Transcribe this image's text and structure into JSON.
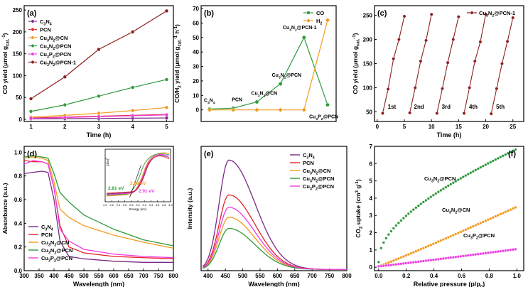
{
  "chart_data": [
    {
      "panel": "(a)",
      "type": "line",
      "xlabel": "Time (h)",
      "ylabel": "CO yield (μmol g",
      "ylabel_sub": "cat.",
      "ylabel_sup": "-1",
      "ylabel_close": ")",
      "xlim": [
        0.8,
        5.2
      ],
      "ylim": [
        -5,
        260
      ],
      "xticks": [
        1,
        2,
        3,
        4,
        5
      ],
      "yticks": [
        0,
        50,
        100,
        150,
        200,
        250
      ],
      "legend": "top-left",
      "series": [
        {
          "name": "C3N4",
          "label_parts": [
            "C",
            "3",
            "N",
            "4"
          ],
          "color": "#7b2a86",
          "x": [
            1,
            2,
            3,
            4,
            5
          ],
          "y": [
            1,
            1.5,
            2,
            2.5,
            3
          ]
        },
        {
          "name": "PCN",
          "label_parts": [
            "PCN"
          ],
          "color": "#e8232a",
          "x": [
            1,
            2,
            3,
            4,
            5
          ],
          "y": [
            3,
            5,
            7,
            9,
            11
          ]
        },
        {
          "name": "Cu3N2@CN",
          "label_parts": [
            "Cu",
            "3",
            "N",
            "2",
            "@CN"
          ],
          "color": "#f29a1e",
          "x": [
            1,
            2,
            3,
            4,
            5
          ],
          "y": [
            5,
            9,
            14,
            20,
            27
          ]
        },
        {
          "name": "Cu3N2@PCN",
          "label_parts": [
            "Cu",
            "3",
            "N",
            "2",
            "@PCN"
          ],
          "color": "#2e9a3a",
          "x": [
            1,
            2,
            3,
            4,
            5
          ],
          "y": [
            18,
            33,
            53,
            73,
            91
          ]
        },
        {
          "name": "Cu3P2@PCN",
          "label_parts": [
            "Cu",
            "3",
            "P",
            "2",
            "@PCN"
          ],
          "color": "#ee3de0",
          "x": [
            1,
            2,
            3,
            4,
            5
          ],
          "y": [
            2,
            4,
            6,
            8,
            10
          ]
        },
        {
          "name": "Cu3N2@PCN-1",
          "label_parts": [
            "Cu",
            "3",
            "N",
            "2",
            "@PCN-1"
          ],
          "color": "#8c1d1d",
          "x": [
            1,
            2,
            3,
            4,
            5
          ],
          "y": [
            47,
            97,
            160,
            200,
            248
          ]
        }
      ]
    },
    {
      "panel": "(b)",
      "type": "line",
      "xlabel": "",
      "ylabel": "CO/H",
      "ylabel_sub2": "2",
      "ylabel_rest": " yield (μmol g",
      "ylabel_sub": "cat.",
      "ylabel_sup": "-1",
      "ylabel_sup2": "h",
      "ylabel_close": ")",
      "ylim": [
        -8,
        72
      ],
      "yticks": [
        0,
        10,
        20,
        30,
        40,
        50,
        60,
        70
      ],
      "categories": [
        "C3N4",
        "PCN",
        "Cu3N2@CN",
        "Cu3N2@PCN",
        "Cu3N2@PCN-1",
        "Cu3P2@PCN"
      ],
      "category_labels": [
        [
          "C",
          "3",
          "N",
          "4"
        ],
        [
          "PCN"
        ],
        [
          "Cu",
          "3",
          "N",
          "2",
          "@CN"
        ],
        [
          "Cu",
          "3",
          "N",
          "2",
          "@PCN"
        ],
        [
          "Cu",
          "3",
          "N",
          "2",
          "@PCN-1"
        ],
        [
          "Cu",
          "3",
          "P",
          "2",
          "@PCN"
        ]
      ],
      "legend": "top-right",
      "series": [
        {
          "name": "CO",
          "color": "#2e9a3a",
          "values": [
            0.6,
            1.2,
            5.5,
            18,
            50,
            3.5
          ]
        },
        {
          "name": "H2",
          "label_parts": [
            "H",
            "2"
          ],
          "color": "#f29a1e",
          "values": [
            0,
            0,
            0,
            0,
            0,
            62
          ]
        }
      ]
    },
    {
      "panel": "(c)",
      "type": "line",
      "xlabel": "Time (h)",
      "ylabel": "CO yield (μmol g",
      "ylabel_sub": "cat.",
      "ylabel_sup": "-1",
      "ylabel_close": ")",
      "xlim": [
        -0.5,
        27
      ],
      "ylim": [
        30,
        270
      ],
      "xticks": [
        0,
        5,
        10,
        15,
        20,
        25
      ],
      "yticks": [
        50,
        100,
        150,
        200,
        250
      ],
      "legend": "top-right",
      "series_name": "Cu3N2@PCN-1",
      "series_label_parts": [
        "Cu",
        "3",
        "N",
        "2",
        "@PCN-1"
      ],
      "color": "#8c1d1d",
      "cycles": [
        {
          "label": "1st",
          "x": [
            1,
            2,
            3,
            4,
            5
          ],
          "y": [
            47,
            97,
            160,
            200,
            248
          ]
        },
        {
          "label": "2nd",
          "x": [
            6,
            7,
            8,
            9,
            10
          ],
          "y": [
            48,
            100,
            155,
            198,
            252
          ]
        },
        {
          "label": "3rd",
          "x": [
            11,
            12,
            13,
            14,
            15
          ],
          "y": [
            47,
            98,
            152,
            200,
            247
          ]
        },
        {
          "label": "4th",
          "x": [
            16,
            17,
            18,
            19,
            20
          ],
          "y": [
            47,
            100,
            155,
            195,
            252
          ]
        },
        {
          "label": "5th",
          "x": [
            21,
            22,
            23,
            24,
            25
          ],
          "y": [
            46,
            98,
            150,
            196,
            245
          ]
        }
      ]
    },
    {
      "panel": "(d)",
      "type": "line",
      "xlabel": "Wavelength (nm)",
      "ylabel": "Absorbance (a.u.)",
      "xlim": [
        300,
        800
      ],
      "ylim": [
        0,
        1.05
      ],
      "xticks": [
        300,
        350,
        400,
        450,
        500,
        550,
        600,
        650,
        700,
        750,
        800
      ],
      "yticks": [
        0.0,
        0.2,
        0.4,
        0.6,
        0.8,
        1.0
      ],
      "legend": "bottom-left",
      "series": [
        {
          "name": "C3N4",
          "label_parts": [
            "C",
            "3",
            "N",
            "4"
          ],
          "color": "#7b2a86",
          "x": [
            300,
            330,
            360,
            380,
            400,
            420,
            450,
            500,
            600,
            700,
            800
          ],
          "y": [
            0.82,
            0.83,
            0.84,
            0.83,
            0.6,
            0.25,
            0.12,
            0.1,
            0.08,
            0.07,
            0.07
          ]
        },
        {
          "name": "PCN",
          "label_parts": [
            "PCN"
          ],
          "color": "#e8232a",
          "x": [
            300,
            330,
            360,
            380,
            400,
            420,
            450,
            500,
            600,
            700,
            800
          ],
          "y": [
            0.93,
            0.92,
            0.92,
            0.9,
            0.7,
            0.38,
            0.2,
            0.15,
            0.12,
            0.11,
            0.1
          ]
        },
        {
          "name": "Cu3N2@CN",
          "label_parts": [
            "Cu",
            "3",
            "N",
            "2",
            "@CN"
          ],
          "color": "#f29a1e",
          "x": [
            300,
            330,
            360,
            380,
            400,
            420,
            450,
            500,
            600,
            700,
            800
          ],
          "y": [
            0.95,
            0.96,
            0.95,
            0.93,
            0.75,
            0.52,
            0.45,
            0.38,
            0.3,
            0.24,
            0.19
          ]
        },
        {
          "name": "Cu3N2@PCN",
          "label_parts": [
            "Cu",
            "3",
            "N",
            "2",
            "@PCN"
          ],
          "color": "#2e9a3a",
          "x": [
            300,
            330,
            360,
            380,
            400,
            420,
            450,
            500,
            600,
            700,
            800
          ],
          "y": [
            0.96,
            0.97,
            0.96,
            0.95,
            0.82,
            0.66,
            0.58,
            0.47,
            0.35,
            0.26,
            0.21
          ]
        },
        {
          "name": "Cu3P2@PCN",
          "label_parts": [
            "Cu",
            "3",
            "P",
            "2",
            "@PCN"
          ],
          "color": "#ee3de0",
          "x": [
            300,
            330,
            360,
            380,
            400,
            420,
            450,
            500,
            600,
            700,
            800
          ],
          "y": [
            0.9,
            0.93,
            0.92,
            0.9,
            0.7,
            0.35,
            0.25,
            0.18,
            0.14,
            0.12,
            0.11
          ]
        }
      ],
      "inset": {
        "ylabel": "(αhν)",
        "ylabel_sup": "2",
        "xlabel": "Energy (eV)",
        "xlim": [
          2.0,
          4.0
        ],
        "xticks": [
          2.0,
          2.2,
          2.4,
          2.6,
          2.8,
          3.0,
          3.2,
          3.4,
          3.6,
          3.8,
          4.0
        ],
        "annotations": [
          {
            "text": "2.89 eV",
            "color": "#f29a1e"
          },
          {
            "text": "2.81 eV",
            "color": "#2e9a3a"
          },
          {
            "text": "2.91 eV",
            "color": "#ee3de0"
          }
        ]
      }
    },
    {
      "panel": "(e)",
      "type": "line",
      "xlabel": "Wavelength (nm)",
      "ylabel": "Intensity (a.u.)",
      "xlim": [
        380,
        800
      ],
      "ylim": [
        0,
        1.0
      ],
      "xticks": [
        400,
        450,
        500,
        550,
        600,
        650,
        700,
        750,
        800
      ],
      "legend": "top-right",
      "series": [
        {
          "name": "C3N4",
          "label_parts": [
            "C",
            "3",
            "N",
            "4"
          ],
          "color": "#7b2a86",
          "peak_x": 460,
          "peak_y": 0.88
        },
        {
          "name": "PCN",
          "label_parts": [
            "PCN"
          ],
          "color": "#e8232a",
          "peak_x": 460,
          "peak_y": 0.6
        },
        {
          "name": "Cu3N2@CN",
          "label_parts": [
            "Cu",
            "3",
            "N",
            "2",
            "@CN"
          ],
          "color": "#f29a1e",
          "peak_x": 460,
          "peak_y": 0.42
        },
        {
          "name": "Cu3N2@PCN",
          "label_parts": [
            "Cu",
            "3",
            "N",
            "2",
            "@PCN"
          ],
          "color": "#2e9a3a",
          "peak_x": 460,
          "peak_y": 0.33
        },
        {
          "name": "Cu3P2@PCN",
          "label_parts": [
            "Cu",
            "3",
            "P",
            "2",
            "@PCN"
          ],
          "color": "#ee3de0",
          "peak_x": 460,
          "peak_y": 0.5
        }
      ]
    },
    {
      "panel": "(f)",
      "type": "scatter",
      "xlabel": "Relative pressure (p/p",
      "xlabel_sub": "0",
      "xlabel_close": ")",
      "ylabel": "CO",
      "ylabel_sub": "2",
      "ylabel_rest": " uptake (cm",
      "ylabel_sup": "3",
      "ylabel_rest2": " g",
      "ylabel_sup2": "-1",
      "ylabel_close": ")",
      "xlim": [
        -0.03,
        1.05
      ],
      "ylim": [
        -0.2,
        7
      ],
      "xticks": [
        0.0,
        0.2,
        0.4,
        0.6,
        0.8,
        1.0
      ],
      "yticks": [
        0,
        1,
        2,
        3,
        4,
        5,
        6,
        7
      ],
      "series": [
        {
          "name": "Cu3N2@PCN",
          "label_parts": [
            "Cu",
            "3",
            "N",
            "2",
            "@PCN"
          ],
          "color": "#2e9a3a",
          "end_y": 6.5,
          "shape": "sqrt"
        },
        {
          "name": "Cu3N2@CN",
          "label_parts": [
            "Cu",
            "3",
            "N",
            "2",
            "@CN"
          ],
          "color": "#f29a1e",
          "end_y": 3.5,
          "shape": "linear"
        },
        {
          "name": "Cu3P2@PCN",
          "label_parts": [
            "Cu",
            "3",
            "P",
            "2",
            "@PCN"
          ],
          "color": "#ee3de0",
          "end_y": 1.05,
          "shape": "linear"
        }
      ]
    }
  ]
}
